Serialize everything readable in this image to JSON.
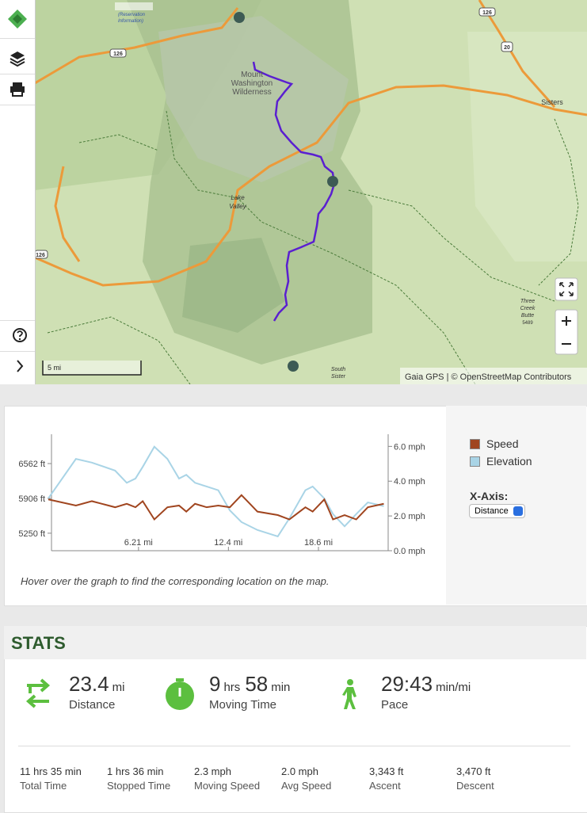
{
  "map": {
    "labels": [
      "(Reservation",
      "Information)",
      "126",
      "126",
      "126",
      "20",
      "Sisters",
      "Mount",
      "Washington",
      "Wilderness",
      "Lake",
      "Valley",
      "Three",
      "Creek",
      "Butte",
      "5489",
      "South",
      "Sister"
    ],
    "scale": "5 mi",
    "attribution": "Gaia GPS | © OpenStreetMap Contributors"
  },
  "chart_data": {
    "type": "line",
    "x": [
      0,
      1.9,
      3.0,
      4.6,
      5.4,
      6.0,
      6.5,
      7.3,
      8.2,
      9.0,
      9.5,
      10.1,
      10.9,
      11.7,
      12.5,
      13.3,
      14.4,
      15.8,
      16.6,
      17.7,
      18.2,
      19.0,
      19.6,
      20.4,
      21.2,
      22.0,
      23.1
    ],
    "xlim": [
      0,
      23.4
    ],
    "xticks": [
      {
        "value": 6.21,
        "label": "6.21 mi"
      },
      {
        "value": 12.4,
        "label": "12.4 mi"
      },
      {
        "value": 18.6,
        "label": "18.6 mi"
      }
    ],
    "ylim": [
      4920,
      7115
    ],
    "yticks": [
      {
        "value": 5250,
        "label": "5250 ft"
      },
      {
        "value": 5906,
        "label": "5906 ft"
      },
      {
        "value": 6562,
        "label": "6562 ft"
      }
    ],
    "y2lim": [
      0,
      6.7
    ],
    "y2ticks": [
      {
        "value": 0,
        "label": "0.0 mph"
      },
      {
        "value": 2,
        "label": "2.0 mph"
      },
      {
        "value": 4,
        "label": "4.0 mph"
      },
      {
        "value": 6,
        "label": "6.0 mph"
      }
    ],
    "grid": false,
    "series": [
      {
        "name": "Speed",
        "color": "#a0451f",
        "axis": "y2",
        "values": [
          2.95,
          2.6,
          2.85,
          2.5,
          2.7,
          2.5,
          2.85,
          1.8,
          2.5,
          2.6,
          2.25,
          2.7,
          2.5,
          2.6,
          2.5,
          3.2,
          2.25,
          2.05,
          1.8,
          2.5,
          2.25,
          2.95,
          1.8,
          2.05,
          1.8,
          2.5,
          2.7
        ]
      },
      {
        "name": "Elevation",
        "color": "#a9d4e6",
        "values": [
          5906,
          6650,
          6580,
          6430,
          6200,
          6280,
          6500,
          6880,
          6650,
          6280,
          6350,
          6200,
          6130,
          6060,
          5680,
          5460,
          5310,
          5190,
          5530,
          6060,
          6130,
          5906,
          5610,
          5380,
          5610,
          5830,
          5760
        ]
      }
    ]
  },
  "chart_panel": {
    "x_axis_label": "X-Axis:",
    "x_axis_option": "Distance",
    "caption": "Hover over the graph to find the corresponding location on the map."
  },
  "stats": {
    "title": "STATS",
    "main": [
      {
        "parts": [
          {
            "value": "23.4",
            "unit": "mi"
          }
        ],
        "label": "Distance"
      },
      {
        "parts": [
          {
            "value": "9",
            "unit": "hrs"
          },
          {
            "value": "58",
            "unit": "min"
          }
        ],
        "label": "Moving Time"
      },
      {
        "parts": [
          {
            "value": "29:43",
            "unit": "min/mi"
          }
        ],
        "label": "Pace"
      }
    ],
    "details": [
      {
        "text": "11 hrs 35 min",
        "label": "Total Time"
      },
      {
        "text": "1 hrs 36 min",
        "label": "Stopped Time"
      },
      {
        "text": "2.3 mph",
        "label": "Moving Speed"
      },
      {
        "text": "2.0 mph",
        "label": "Avg Speed"
      },
      {
        "text": "3,343 ft",
        "label": "Ascent"
      },
      {
        "text": "3,470 ft",
        "label": "Descent"
      }
    ]
  }
}
